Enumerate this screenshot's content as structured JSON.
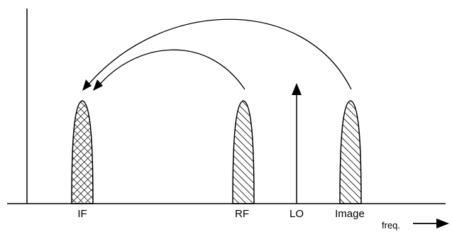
{
  "labels": {
    "if": "IF",
    "rf": "RF",
    "lo": "LO",
    "image": "Image",
    "freq": "freq."
  },
  "colors": {
    "stroke": "#000000",
    "background": "#ffffff"
  }
}
